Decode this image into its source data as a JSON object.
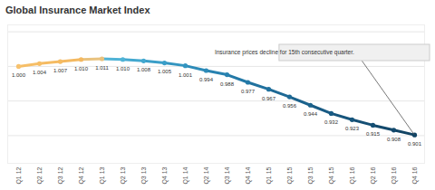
{
  "chart_data": {
    "type": "line",
    "title": "Global Insurance Market Index",
    "annotation": "Insurance prices decline for 15th consecutive quarter.",
    "categories": [
      "Q1 12",
      "Q2 12",
      "Q3 12",
      "Q4 12",
      "Q1 13",
      "Q2 13",
      "Q3 13",
      "Q4 13",
      "Q1 14",
      "Q2 14",
      "Q3 14",
      "Q4 14",
      "Q1 15",
      "Q2 15",
      "Q3 15",
      "Q4 15",
      "Q1 16",
      "Q2 16",
      "Q3 16",
      "Q4 16"
    ],
    "values": [
      1.0,
      1.004,
      1.007,
      1.01,
      1.011,
      1.01,
      1.008,
      1.005,
      1.001,
      0.994,
      0.988,
      0.977,
      0.967,
      0.956,
      0.944,
      0.932,
      0.923,
      0.915,
      0.908,
      0.901
    ],
    "value_labels": [
      "1.000",
      "1.004",
      "1.007",
      "1.010",
      "1.011",
      "1.010",
      "1.008",
      "1.005",
      "1.001",
      "0.994",
      "0.988",
      "0.977",
      "0.967",
      "0.956",
      "0.944",
      "0.932",
      "0.923",
      "0.915",
      "0.908",
      "0.901"
    ],
    "colors": [
      "#f7c26e",
      "#f6be66",
      "#f5bb62",
      "#f4b961",
      "#e9c27e",
      "#4fb3d6",
      "#43a8cf",
      "#3a9ec8",
      "#3395c0",
      "#2d8bb8",
      "#2882b0",
      "#2379a7",
      "#20719e",
      "#1d6995",
      "#1b628c",
      "#195b84",
      "#17557c",
      "#154f74",
      "#13496c",
      "#114464"
    ],
    "marker": "circle",
    "data_labels": true,
    "ylim": [
      0.86,
      1.06
    ],
    "yticks": [
      0.9,
      0.95,
      1.0,
      1.05
    ],
    "grid": true,
    "tick_labels": "x"
  }
}
